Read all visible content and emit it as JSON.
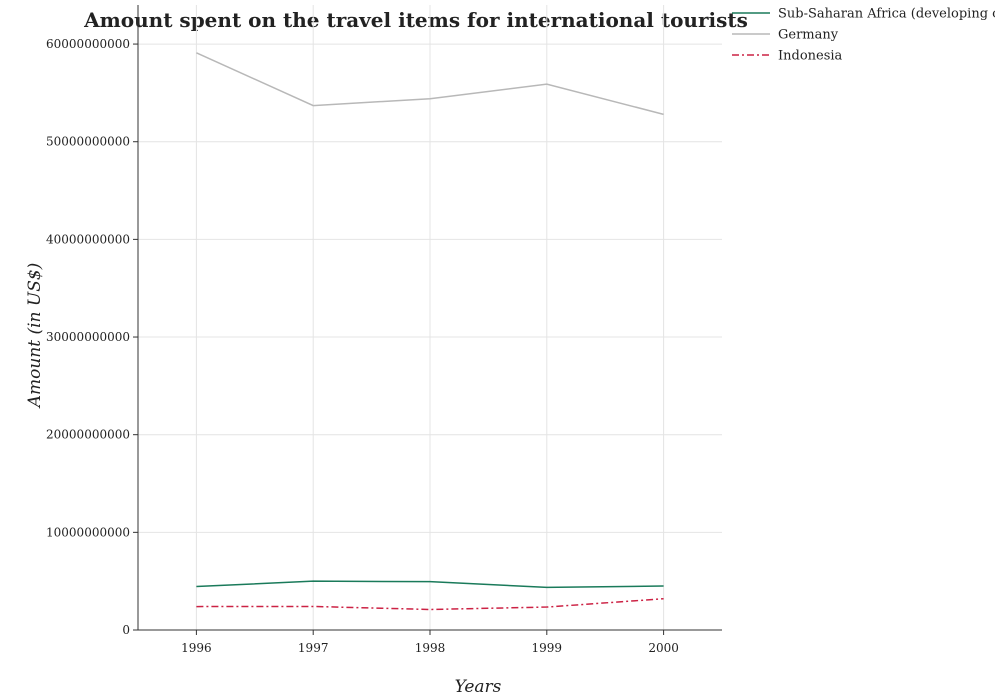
{
  "chart_data": {
    "type": "line",
    "title": "Amount spent on the travel items for international tourists",
    "xlabel": "Years",
    "ylabel": "Amount (in US$)",
    "categories": [
      "1996",
      "1997",
      "1998",
      "1999",
      "2000"
    ],
    "ylim": [
      0,
      64000000000
    ],
    "yticks": [
      0,
      10000000000,
      20000000000,
      30000000000,
      40000000000,
      50000000000,
      60000000000
    ],
    "ytick_labels": [
      "0",
      "10000000000",
      "20000000000",
      "30000000000",
      "40000000000",
      "50000000000",
      "60000000000"
    ],
    "grid": true,
    "legend_position": "top-right",
    "series": [
      {
        "name": "Sub-Saharan Africa (developing only)",
        "color": "#1a7a5a",
        "dash": "solid",
        "values": [
          4450000000,
          5000000000,
          4950000000,
          4370000000,
          4500000000
        ]
      },
      {
        "name": "Germany",
        "color": "#b8b8b8",
        "dash": "solid",
        "values": [
          59100000000,
          53700000000,
          54400000000,
          55900000000,
          52800000000
        ]
      },
      {
        "name": "Indonesia",
        "color": "#cc2244",
        "dash": "dashdot",
        "values": [
          2400000000,
          2410000000,
          2100000000,
          2350000000,
          3200000000
        ]
      }
    ]
  }
}
